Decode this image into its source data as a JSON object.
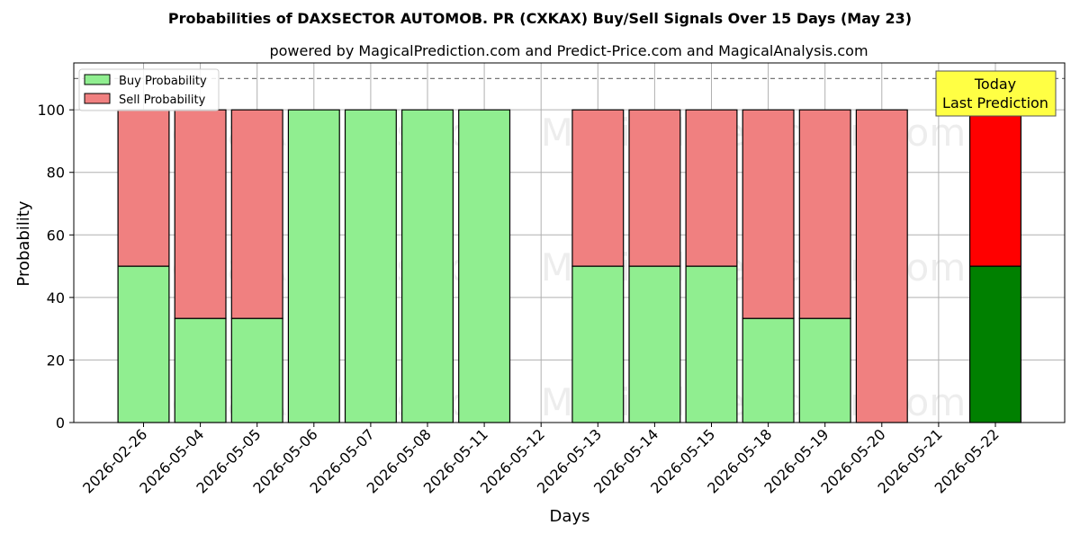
{
  "chart_data": {
    "type": "bar",
    "title": "Probabilities of DAXSECTOR AUTOMOB. PR (CXKAX) Buy/Sell Signals Over 15 Days (May 23)",
    "subtitle": "powered by MagicalPrediction.com and Predict-Price.com and MagicalAnalysis.com",
    "xlabel": "Days",
    "ylabel": "Probability",
    "ylim": [
      0,
      115
    ],
    "yticks": [
      0,
      20,
      40,
      60,
      80,
      100
    ],
    "grid": true,
    "legend_position": "top-left",
    "reference_line": 110,
    "categories": [
      "2026-02-26",
      "2026-05-04",
      "2026-05-05",
      "2026-05-06",
      "2026-05-07",
      "2026-05-08",
      "2026-05-11",
      "2026-05-12",
      "2026-05-13",
      "2026-05-14",
      "2026-05-15",
      "2026-05-18",
      "2026-05-19",
      "2026-05-20",
      "2026-05-21",
      "2026-05-22"
    ],
    "series": [
      {
        "name": "Buy Probability",
        "color": "#90ee90",
        "values": [
          50,
          33.3,
          33.3,
          100,
          100,
          100,
          100,
          null,
          50,
          50,
          50,
          33.3,
          33.3,
          0,
          null,
          50
        ]
      },
      {
        "name": "Sell Probability",
        "color": "#f08080",
        "values": [
          50,
          66.7,
          66.7,
          0,
          0,
          0,
          0,
          null,
          50,
          50,
          50,
          66.7,
          66.7,
          100,
          null,
          50
        ]
      }
    ],
    "highlight": {
      "index": 15,
      "buy_color": "#008000",
      "sell_color": "#ff0000"
    },
    "annotation": {
      "line1": "Today",
      "line2": "Last Prediction",
      "bg": "#ffff44"
    },
    "watermarks": [
      "MagicalAnalysis.com",
      "MagicalPrediction.com"
    ]
  }
}
